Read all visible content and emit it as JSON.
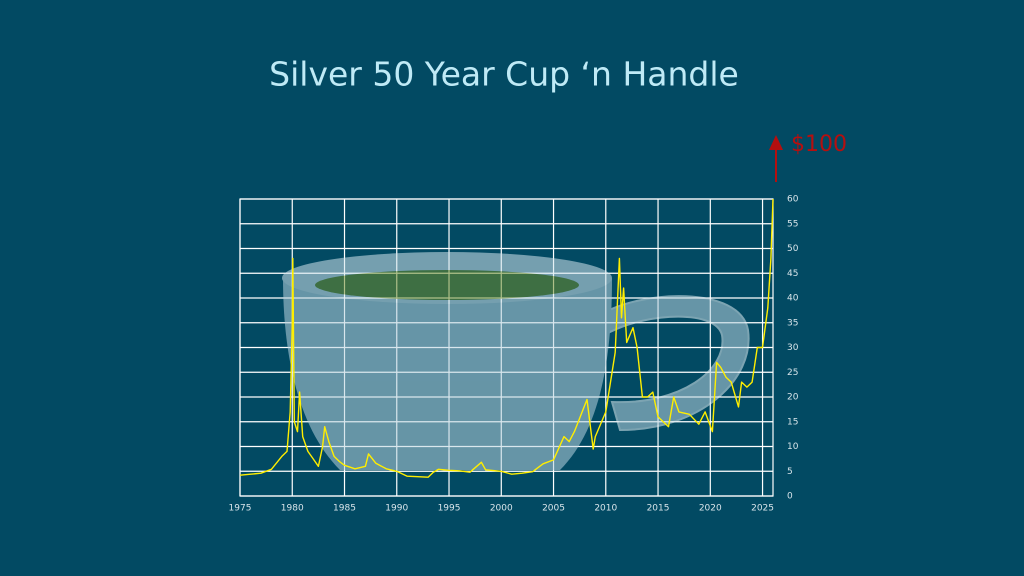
{
  "chart_data": {
    "type": "line",
    "title": "Silver 50 Year Cup ‘n Handle",
    "annotation": "$100",
    "x": [
      1975,
      1976,
      1977,
      1978,
      1979,
      1979.5,
      1979.8,
      1980.0,
      1980.05,
      1980.2,
      1980.5,
      1980.7,
      1981,
      1981.5,
      1982,
      1982.5,
      1982.9,
      1983.1,
      1983.5,
      1984,
      1984.5,
      1985,
      1986,
      1987,
      1987.3,
      1988,
      1989,
      1990,
      1991,
      1992,
      1993,
      1993.5,
      1994,
      1995,
      1996,
      1997,
      1998.1,
      1998.5,
      1999,
      2000,
      2001,
      2002,
      2003,
      2004,
      2005,
      2006,
      2006.5,
      2007,
      2008.2,
      2008.8,
      2009,
      2010,
      2010.9,
      2011.3,
      2011.5,
      2011.7,
      2012,
      2012.6,
      2013,
      2013.5,
      2014,
      2014.5,
      2015,
      2016,
      2016.5,
      2017,
      2018,
      2018.9,
      2019.5,
      2020.2,
      2020.6,
      2021,
      2021.5,
      2022,
      2022.7,
      2023,
      2023.5,
      2024,
      2024.5,
      2025,
      2025.5,
      2025.8,
      2026
    ],
    "values": [
      4.2,
      4.4,
      4.6,
      5.4,
      8,
      9,
      17,
      35,
      48,
      15,
      13,
      21,
      12,
      9,
      7.5,
      6,
      10,
      14,
      11,
      8,
      7,
      6.2,
      5.5,
      6,
      8.5,
      6.6,
      5.5,
      5,
      4,
      3.9,
      3.8,
      4.8,
      5.4,
      5.2,
      5.1,
      4.8,
      6.8,
      5.3,
      5.2,
      5,
      4.4,
      4.6,
      4.9,
      6.5,
      7.3,
      12,
      11,
      13,
      19.5,
      9.5,
      12,
      17,
      29,
      48,
      36,
      42,
      31,
      34,
      30,
      20,
      20,
      21,
      16,
      14,
      20,
      17,
      16.5,
      14.5,
      17,
      13,
      27,
      26,
      24,
      23,
      18,
      23,
      22,
      23,
      30,
      30,
      38,
      48,
      60
    ],
    "color": "#ffee00",
    "xlim": [
      1975,
      2026
    ],
    "xticks": [
      1975,
      1980,
      1985,
      1990,
      1995,
      2000,
      2005,
      2010,
      2015,
      2020,
      2025
    ],
    "ylim": [
      0,
      60
    ],
    "yticks": [
      0,
      5,
      10,
      15,
      20,
      25,
      30,
      35,
      40,
      45,
      50,
      55,
      60
    ],
    "grid": true
  }
}
